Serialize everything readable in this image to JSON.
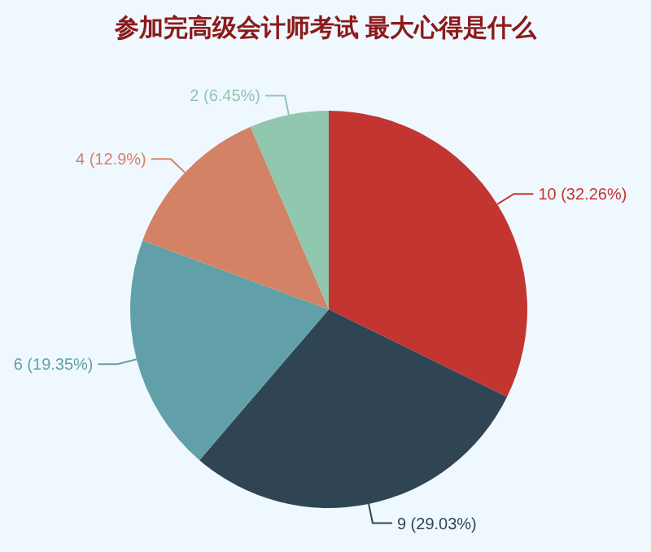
{
  "chart_data": {
    "type": "pie",
    "title": "参加完高级会计师考试 最大心得是什么",
    "categories": [
      null,
      null,
      null,
      null,
      null
    ],
    "values": [
      10,
      9,
      6,
      4,
      2
    ],
    "colors": [
      "#c23531",
      "#2f4554",
      "#61a0a8",
      "#d48265",
      "#91c7ae"
    ],
    "value_labels": [
      "10 (32.26%)",
      "9 (29.03%)",
      "6 (19.35%)",
      "4 (12.9%)",
      "2 (6.45%)"
    ]
  }
}
